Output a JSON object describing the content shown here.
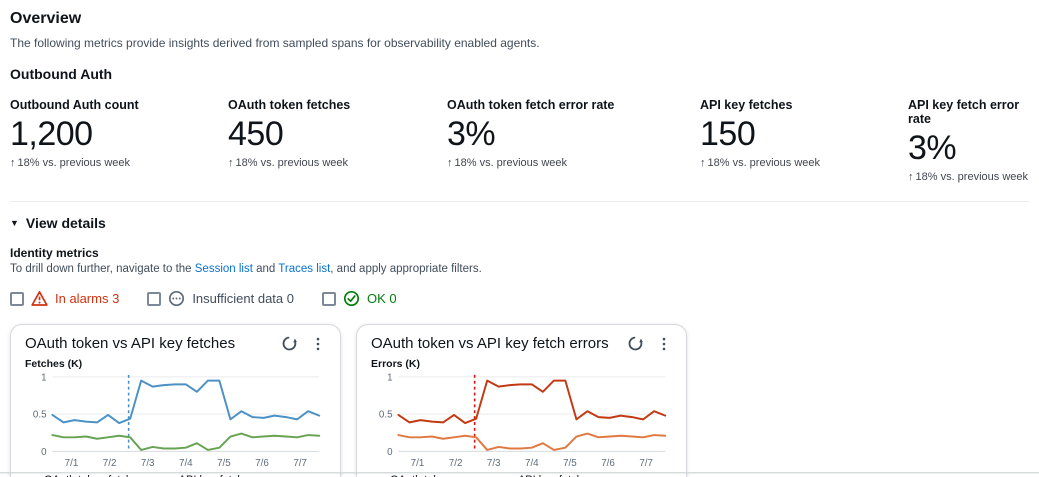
{
  "page": {
    "title": "Overview",
    "description": "The following metrics provide insights derived from sampled spans for observability enabled agents.",
    "section_heading": "Outbound Auth",
    "view_details_caret": "▼",
    "view_details_label": "View details"
  },
  "kpis": [
    {
      "label": "Outbound Auth count",
      "value": "1,200",
      "trend_arrow": "↑",
      "trend": "18% vs. previous week"
    },
    {
      "label": "OAuth token fetches",
      "value": "450",
      "trend_arrow": "↑",
      "trend": "18% vs. previous week"
    },
    {
      "label": "OAuth token fetch error rate",
      "value": "3%",
      "trend_arrow": "↑",
      "trend": "18% vs. previous week"
    },
    {
      "label": "API key fetches",
      "value": "150",
      "trend_arrow": "↑",
      "trend": "18% vs. previous week"
    },
    {
      "label": "API key fetch error rate",
      "value": "3%",
      "trend_arrow": "↑",
      "trend": "18% vs. previous week"
    }
  ],
  "identity": {
    "heading": "Identity metrics",
    "desc_prefix": "To drill down further, navigate to the ",
    "link_session": "Session list",
    "desc_mid": " and ",
    "link_traces": "Traces list",
    "desc_suffix": ", and apply appropriate filters."
  },
  "filters": [
    {
      "label": "In alarms 3",
      "color": "#D13212",
      "icon": "alarm-warning-icon"
    },
    {
      "label": "Insufficient data 0",
      "color": "#414D5C",
      "icon": "pending-icon"
    },
    {
      "label": "OK 0",
      "color": "#037F0C",
      "icon": "ok-check-icon"
    }
  ],
  "card_action_icons": [
    "refresh-icon",
    "ellipsis-vertical-icon"
  ],
  "chart_data": [
    {
      "type": "line",
      "title": "OAuth token vs API key fetches",
      "ylabel": "Fetches (K)",
      "ylim": [
        0,
        1
      ],
      "xlim": [
        0.5,
        7.5
      ],
      "y_ticks": [
        {
          "v": 1,
          "label": "1"
        },
        {
          "v": 0.5,
          "label": "0.5"
        },
        {
          "v": 0,
          "label": "0"
        }
      ],
      "x_tick_labels": [
        "7/1",
        "7/2",
        "7/3",
        "7/4",
        "7/5",
        "7/6",
        "7/7"
      ],
      "x_tick_positions": [
        1,
        2,
        3,
        4,
        5,
        6,
        7
      ],
      "annotation_x": 2.5,
      "annotation_color": "#4C91C5",
      "grid": true,
      "legend_position": "bottom",
      "x": [
        0.5,
        0.79,
        1.08,
        1.38,
        1.67,
        1.96,
        2.25,
        2.54,
        2.83,
        3.13,
        3.42,
        3.71,
        4,
        4.29,
        4.58,
        4.88,
        5.17,
        5.46,
        5.75,
        6.04,
        6.33,
        6.63,
        6.92,
        7.21,
        7.5
      ],
      "series": [
        {
          "name": "OAuth token fetches",
          "color": "#4C91C5",
          "values": [
            0.49,
            0.39,
            0.42,
            0.4,
            0.39,
            0.49,
            0.38,
            0.44,
            0.95,
            0.87,
            0.89,
            0.9,
            0.9,
            0.8,
            0.95,
            0.95,
            0.43,
            0.54,
            0.46,
            0.45,
            0.48,
            0.46,
            0.43,
            0.54,
            0.48
          ]
        },
        {
          "name": "API key fetches",
          "color": "#67A353",
          "values": [
            0.22,
            0.19,
            0.19,
            0.2,
            0.17,
            0.19,
            0.21,
            0.19,
            0.02,
            0.06,
            0.04,
            0.04,
            0.05,
            0.11,
            0.02,
            0.05,
            0.2,
            0.24,
            0.19,
            0.2,
            0.21,
            0.2,
            0.19,
            0.22,
            0.21
          ]
        }
      ]
    },
    {
      "type": "line",
      "title": "OAuth token vs API key fetch errors",
      "ylabel": "Errors (K)",
      "ylim": [
        0,
        1
      ],
      "xlim": [
        0.5,
        7.5
      ],
      "y_ticks": [
        {
          "v": 1,
          "label": "1"
        },
        {
          "v": 0.5,
          "label": "0.5"
        },
        {
          "v": 0,
          "label": "0"
        }
      ],
      "x_tick_labels": [
        "7/1",
        "7/2",
        "7/3",
        "7/4",
        "7/5",
        "7/6",
        "7/7"
      ],
      "x_tick_positions": [
        1,
        2,
        3,
        4,
        5,
        6,
        7
      ],
      "annotation_x": 2.5,
      "annotation_color": "#DE1111",
      "grid": true,
      "legend_position": "bottom",
      "x": [
        0.5,
        0.79,
        1.08,
        1.38,
        1.67,
        1.96,
        2.25,
        2.54,
        2.83,
        3.13,
        3.42,
        3.71,
        4,
        4.29,
        4.58,
        4.88,
        5.17,
        5.46,
        5.75,
        6.04,
        6.33,
        6.63,
        6.92,
        7.21,
        7.5
      ],
      "series": [
        {
          "name": "OAuth token errors",
          "color": "#C23A13",
          "values": [
            0.49,
            0.39,
            0.42,
            0.4,
            0.39,
            0.49,
            0.38,
            0.44,
            0.95,
            0.87,
            0.89,
            0.9,
            0.9,
            0.8,
            0.95,
            0.95,
            0.43,
            0.54,
            0.46,
            0.45,
            0.48,
            0.46,
            0.43,
            0.54,
            0.48
          ]
        },
        {
          "name": "API key fetch errors",
          "color": "#E07941",
          "values": [
            0.22,
            0.19,
            0.19,
            0.2,
            0.17,
            0.19,
            0.21,
            0.19,
            0.02,
            0.06,
            0.04,
            0.04,
            0.05,
            0.11,
            0.02,
            0.05,
            0.2,
            0.24,
            0.19,
            0.2,
            0.21,
            0.2,
            0.19,
            0.22,
            0.21
          ]
        }
      ]
    }
  ]
}
